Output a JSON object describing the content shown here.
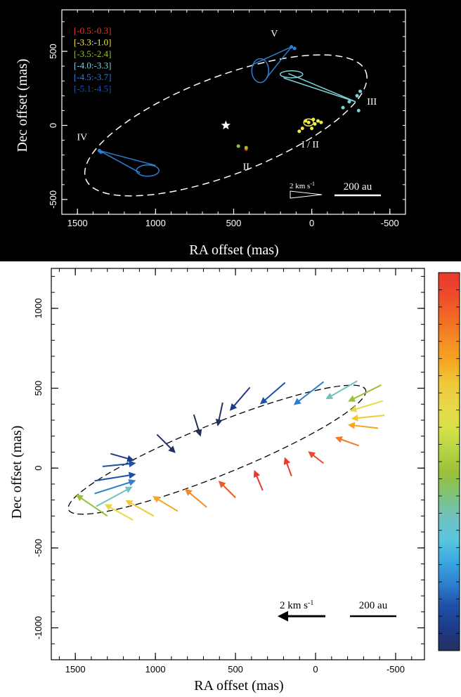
{
  "chart_data": [
    {
      "type": "scatter",
      "xlabel": "RA offset (mas)",
      "ylabel": "Dec offset (mas)",
      "xlim": [
        1600,
        -600
      ],
      "ylim": [
        -600,
        780
      ],
      "xticks": [
        "1500",
        "1000",
        "500",
        "0",
        "-500"
      ],
      "xtick_values": [
        1500,
        1000,
        500,
        0,
        -500
      ],
      "yticks": [
        "-500",
        "0",
        "500"
      ],
      "ytick_values": [
        -500,
        0,
        500
      ],
      "background": "#000000",
      "legend": [
        {
          "label": "[-0.5:-0.3]",
          "color": "#e8392d"
        },
        {
          "label": "[-3.3:-1.0]",
          "color": "#f2e94e"
        },
        {
          "label": "[-3.5:-2.4]",
          "color": "#9bbf3a"
        },
        {
          "label": "[-4.0:-3.3]",
          "color": "#7fd1d8"
        },
        {
          "label": "[-4.5:-3.7]",
          "color": "#2d7fd0"
        },
        {
          "label": "[-5.1:-4.5]",
          "color": "#1f4fa8"
        }
      ],
      "ellipse": {
        "center": [
          550,
          0
        ],
        "a": 960,
        "b": 330,
        "angle_deg": 21
      },
      "star": {
        "x": 550,
        "y": 0
      },
      "region_labels": [
        {
          "text": "V",
          "x": 240,
          "y": 600
        },
        {
          "text": "III",
          "x": -385,
          "y": 140
        },
        {
          "text": "IV",
          "x": 1470,
          "y": -100
        },
        {
          "text": "II",
          "x": 420,
          "y": -300
        },
        {
          "text": "I / II",
          "x": 10,
          "y": -150
        }
      ],
      "points": [
        {
          "x": 420,
          "y": -160,
          "color": "#e8392d"
        },
        {
          "x": 420,
          "y": -150,
          "color": "#9bbf3a"
        },
        {
          "x": 470,
          "y": -140,
          "color": "#9bbf3a"
        },
        {
          "x": 20,
          "y": 20,
          "color": "#f2e94e"
        },
        {
          "x": 40,
          "y": 30,
          "color": "#f2e94e"
        },
        {
          "x": -10,
          "y": 40,
          "color": "#f2e94e"
        },
        {
          "x": -40,
          "y": 30,
          "color": "#f2e94e"
        },
        {
          "x": -60,
          "y": 20,
          "color": "#f2e94e"
        },
        {
          "x": 60,
          "y": -20,
          "color": "#f2e94e"
        },
        {
          "x": 80,
          "y": -40,
          "color": "#f2e94e"
        },
        {
          "x": 0,
          "y": -20,
          "color": "#f2e94e"
        },
        {
          "x": -20,
          "y": 10,
          "color": "#f2e94e"
        },
        {
          "x": -310,
          "y": 230,
          "color": "#7fd1d8"
        },
        {
          "x": -290,
          "y": 200,
          "color": "#7fd1d8"
        },
        {
          "x": -240,
          "y": 160,
          "color": "#7fd1d8"
        },
        {
          "x": -200,
          "y": 120,
          "color": "#7fd1d8"
        },
        {
          "x": -300,
          "y": 100,
          "color": "#7fd1d8"
        },
        {
          "x": 1360,
          "y": -170,
          "color": "#2d7fd0"
        },
        {
          "x": 1350,
          "y": -180,
          "color": "#2d7fd0"
        },
        {
          "x": 130,
          "y": 530,
          "color": "#2d7fd0"
        },
        {
          "x": 110,
          "y": 520,
          "color": "#2d7fd0"
        }
      ],
      "scale_bar_label": "200 au",
      "velocity_label": "2 km s",
      "velocity_label_sup": "-1"
    },
    {
      "type": "vector",
      "xlabel": "RA offset (mas)",
      "ylabel": "Dec offset (mas)",
      "xlim": [
        1650,
        -680
      ],
      "ylim": [
        -1200,
        1250
      ],
      "xticks": [
        "1500",
        "1000",
        "500",
        "0",
        "-500"
      ],
      "xtick_values": [
        1500,
        1000,
        500,
        0,
        -500
      ],
      "yticks": [
        "-1000",
        "-500",
        "0",
        "500",
        "1000"
      ],
      "ytick_values": [
        -1000,
        -500,
        0,
        500,
        1000
      ],
      "ellipse": {
        "center": [
          615,
          115
        ],
        "a": 1000,
        "b": 160,
        "angle_deg": 22
      },
      "vectors": [
        {
          "x": 1140,
          "y": -325,
          "dx": 170,
          "dy": 95,
          "color": "#e8d84a"
        },
        {
          "x": 1010,
          "y": -300,
          "dx": 170,
          "dy": 95,
          "color": "#f0c93a"
        },
        {
          "x": 860,
          "y": -270,
          "dx": 150,
          "dy": 90,
          "color": "#f5a623"
        },
        {
          "x": 680,
          "y": -245,
          "dx": 130,
          "dy": 110,
          "color": "#f08a24"
        },
        {
          "x": 500,
          "y": -185,
          "dx": 100,
          "dy": 100,
          "color": "#ee5a24"
        },
        {
          "x": 330,
          "y": -140,
          "dx": 50,
          "dy": 120,
          "color": "#e8392d"
        },
        {
          "x": 150,
          "y": -50,
          "dx": 40,
          "dy": 110,
          "color": "#e8392d"
        },
        {
          "x": -50,
          "y": 30,
          "dx": 90,
          "dy": 70,
          "color": "#ee4a2a"
        },
        {
          "x": -270,
          "y": 140,
          "dx": 140,
          "dy": 50,
          "color": "#f07a24"
        },
        {
          "x": -390,
          "y": 250,
          "dx": 180,
          "dy": 20,
          "color": "#f5a623"
        },
        {
          "x": -430,
          "y": 330,
          "dx": 200,
          "dy": -20,
          "color": "#f0c93a"
        },
        {
          "x": -420,
          "y": 420,
          "dx": 200,
          "dy": -60,
          "color": "#e8d84a"
        },
        {
          "x": -410,
          "y": 520,
          "dx": 200,
          "dy": -100,
          "color": "#9bbf3a"
        },
        {
          "x": -260,
          "y": 545,
          "dx": 190,
          "dy": -110,
          "color": "#6fc2c0"
        },
        {
          "x": -50,
          "y": 540,
          "dx": 180,
          "dy": -140,
          "color": "#2d7fd0"
        },
        {
          "x": 190,
          "y": 535,
          "dx": 150,
          "dy": -130,
          "color": "#1f4fa8"
        },
        {
          "x": 410,
          "y": 505,
          "dx": 120,
          "dy": -140,
          "color": "#1e3a8a"
        },
        {
          "x": 580,
          "y": 410,
          "dx": 30,
          "dy": -140,
          "color": "#23305e"
        },
        {
          "x": 760,
          "y": 335,
          "dx": -40,
          "dy": -130,
          "color": "#23305e"
        },
        {
          "x": 990,
          "y": 210,
          "dx": -110,
          "dy": -110,
          "color": "#23305e"
        },
        {
          "x": 1280,
          "y": 90,
          "dx": -140,
          "dy": -40,
          "color": "#1e3a8a"
        },
        {
          "x": 1330,
          "y": 10,
          "dx": -200,
          "dy": 20,
          "color": "#1f4fa8"
        },
        {
          "x": 1380,
          "y": -80,
          "dx": -250,
          "dy": 40,
          "color": "#1f4fa8"
        },
        {
          "x": 1380,
          "y": -160,
          "dx": -250,
          "dy": 80,
          "color": "#2d7fd0"
        },
        {
          "x": 1370,
          "y": -240,
          "dx": -220,
          "dy": 120,
          "color": "#6fc2c0"
        },
        {
          "x": 1300,
          "y": -300,
          "dx": 190,
          "dy": 130,
          "color": "#9bbf3a"
        }
      ],
      "scale_bar_label": "200 au",
      "velocity_label": "2 km s",
      "velocity_label_sup": "-1",
      "colorbar": [
        "#e8392d",
        "#ef4a2a",
        "#f06a24",
        "#f58a24",
        "#f5a623",
        "#f0c93a",
        "#e8d84a",
        "#d8e04a",
        "#b5d444",
        "#9bbf3a",
        "#7fc27a",
        "#6fc2c0",
        "#5ac6e0",
        "#3aa8e0",
        "#2d7fd0",
        "#1f4fa8",
        "#1e3a8a",
        "#23305e"
      ]
    }
  ]
}
